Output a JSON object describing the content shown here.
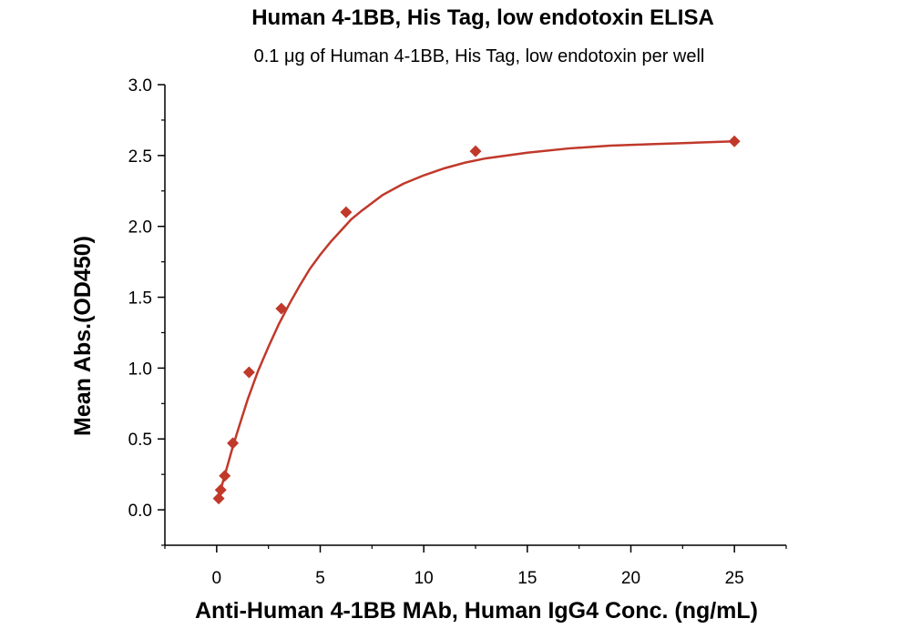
{
  "chart_data": {
    "type": "scatter",
    "title": "Human 4-1BB, His Tag, low endotoxin ELISA",
    "subtitle": "0.1 μg of Human 4-1BB, His Tag, low endotoxin per well",
    "xlabel": "Anti-Human 4-1BB  MAb, Human IgG4 Conc. (ng/mL)",
    "ylabel": "Mean Abs.(OD450)",
    "xlim": [
      -2.5,
      27.5
    ],
    "ylim": [
      -0.25,
      3.0
    ],
    "x_ticks": [
      0,
      5,
      10,
      15,
      20,
      25
    ],
    "x_tick_labels": [
      "0",
      "5",
      "10",
      "15",
      "20",
      "25"
    ],
    "y_ticks": [
      0.0,
      0.5,
      1.0,
      1.5,
      2.0,
      2.5,
      3.0
    ],
    "y_tick_labels": [
      "0.0",
      "0.5",
      "1.0",
      "1.5",
      "2.0",
      "2.5",
      "3.0"
    ],
    "grid": false,
    "color": "#C0392B",
    "series": [
      {
        "x": [
          0.098,
          0.195,
          0.391,
          0.781,
          1.563,
          3.125,
          6.25,
          12.5,
          25
        ],
        "y": [
          0.08,
          0.14,
          0.24,
          0.47,
          0.97,
          1.42,
          2.1,
          2.53,
          2.6
        ]
      }
    ],
    "fit_curve": {
      "x": [
        0.05,
        0.25,
        0.5,
        0.75,
        1,
        1.5,
        2,
        2.5,
        3,
        3.5,
        4,
        4.5,
        5,
        5.5,
        6,
        6.5,
        7,
        8,
        9,
        10,
        11,
        12,
        13,
        14,
        15,
        17,
        19,
        21,
        23,
        25
      ],
      "y": [
        0.06,
        0.17,
        0.3,
        0.43,
        0.55,
        0.78,
        0.98,
        1.15,
        1.31,
        1.45,
        1.58,
        1.7,
        1.8,
        1.89,
        1.97,
        2.05,
        2.11,
        2.22,
        2.3,
        2.36,
        2.41,
        2.45,
        2.48,
        2.5,
        2.52,
        2.55,
        2.57,
        2.58,
        2.59,
        2.6
      ]
    }
  }
}
